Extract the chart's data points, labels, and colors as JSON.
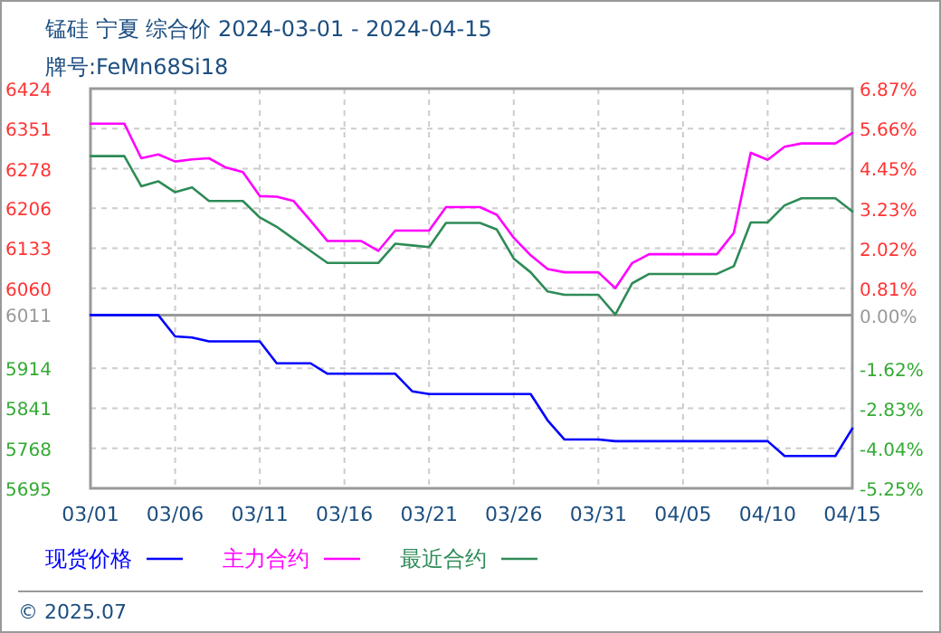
{
  "chart_data": {
    "type": "line",
    "title": "锰硅 宁夏 综合价 2024-03-01 - 2024-04-15",
    "subtitle": "牌号:FeMn68Si18",
    "x": [
      "--03-01",
      "--03-02",
      "--03-03",
      "--03-04",
      "--03-05",
      "--03-06",
      "--03-07",
      "--03-08",
      "--03-09",
      "--03-10",
      "--03-11",
      "--03-12",
      "--03-13",
      "--03-14",
      "--03-15",
      "--03-16",
      "--03-17",
      "--03-18",
      "--03-19",
      "--03-20",
      "--03-21",
      "--03-22",
      "--03-23",
      "--03-24",
      "--03-25",
      "--03-26",
      "--03-27",
      "--03-28",
      "--03-29",
      "--03-30",
      "--03-31",
      "--04-01",
      "--04-02",
      "--04-03",
      "--04-04",
      "--04-05",
      "--04-06",
      "--04-07",
      "--04-08",
      "--04-09",
      "--04-10",
      "--04-11",
      "--04-12",
      "--04-13",
      "--04-14",
      "--04-15"
    ],
    "series": [
      {
        "name": "现货价格",
        "color": "#0000ff",
        "values": [
          6011,
          6011,
          6011,
          6011,
          6011,
          5972,
          5970,
          5963,
          5963,
          5963,
          5963,
          5923,
          5923,
          5923,
          5904,
          5904,
          5904,
          5904,
          5904,
          5872,
          5867,
          5867,
          5867,
          5867,
          5867,
          5867,
          5867,
          5819,
          5784,
          5784,
          5784,
          5781,
          5781,
          5781,
          5781,
          5781,
          5781,
          5781,
          5781,
          5781,
          5781,
          5754,
          5754,
          5754,
          5754,
          5804
        ]
      },
      {
        "name": "主力合约",
        "color": "#ff00ff",
        "values": [
          6360,
          6360,
          6360,
          6297,
          6304,
          6291,
          6295,
          6297,
          6280,
          6272,
          6228,
          6227,
          6219,
          6183,
          6146,
          6146,
          6146,
          6128,
          6165,
          6165,
          6165,
          6208,
          6208,
          6208,
          6194,
          6152,
          6120,
          6095,
          6089,
          6089,
          6089,
          6060,
          6106,
          6122,
          6122,
          6122,
          6122,
          6122,
          6161,
          6307,
          6294,
          6318,
          6324,
          6324,
          6324,
          6343
        ]
      },
      {
        "name": "最近合约",
        "color": "#2e8b57",
        "values": [
          6301,
          6301,
          6301,
          6246,
          6255,
          6235,
          6244,
          6219,
          6219,
          6219,
          6189,
          6172,
          6150,
          6128,
          6106,
          6106,
          6106,
          6106,
          6141,
          6138,
          6135,
          6179,
          6179,
          6179,
          6167,
          6114,
          6089,
          6054,
          6048,
          6048,
          6048,
          6012,
          6069,
          6086,
          6086,
          6086,
          6086,
          6086,
          6100,
          6180,
          6180,
          6211,
          6224,
          6224,
          6224,
          6200
        ]
      }
    ],
    "xlim": [
      "--03-01",
      "--04-15"
    ],
    "xticks": [
      {
        "value": "--03-01",
        "label": "03/01"
      },
      {
        "value": "--03-06",
        "label": "03/06"
      },
      {
        "value": "--03-11",
        "label": "03/11"
      },
      {
        "value": "--03-16",
        "label": "03/16"
      },
      {
        "value": "--03-21",
        "label": "03/21"
      },
      {
        "value": "--03-26",
        "label": "03/26"
      },
      {
        "value": "--03-31",
        "label": "03/31"
      },
      {
        "value": "--04-05",
        "label": "04/05"
      },
      {
        "value": "--04-10",
        "label": "04/10"
      },
      {
        "value": "--04-15",
        "label": "04/15"
      }
    ],
    "ylim": [
      5695,
      6424
    ],
    "yticks": [
      6424,
      6351,
      6278,
      6206,
      6133,
      6060,
      6011,
      5914,
      5841,
      5768,
      5695
    ],
    "y2lim": [
      -5.25,
      6.87
    ],
    "y2ticks": [
      {
        "value": 6.87,
        "label": "6.87%"
      },
      {
        "value": 5.66,
        "label": "5.66%"
      },
      {
        "value": 4.45,
        "label": "4.45%"
      },
      {
        "value": 3.23,
        "label": "3.23%"
      },
      {
        "value": 2.02,
        "label": "2.02%"
      },
      {
        "value": 0.81,
        "label": "0.81%"
      },
      {
        "value": 0,
        "label": "0.00%"
      },
      {
        "value": -1.62,
        "label": "-1.62%"
      },
      {
        "value": -2.83,
        "label": "-2.83%"
      },
      {
        "value": -4.04,
        "label": "-4.04%"
      },
      {
        "value": -5.25,
        "label": "-5.25%"
      }
    ],
    "ref_lines": [
      {
        "axis": "y",
        "value": 6011,
        "color": "#999999"
      }
    ],
    "grid": true,
    "legend": "bottom",
    "annotations": [
      "© 2025.07"
    ]
  }
}
